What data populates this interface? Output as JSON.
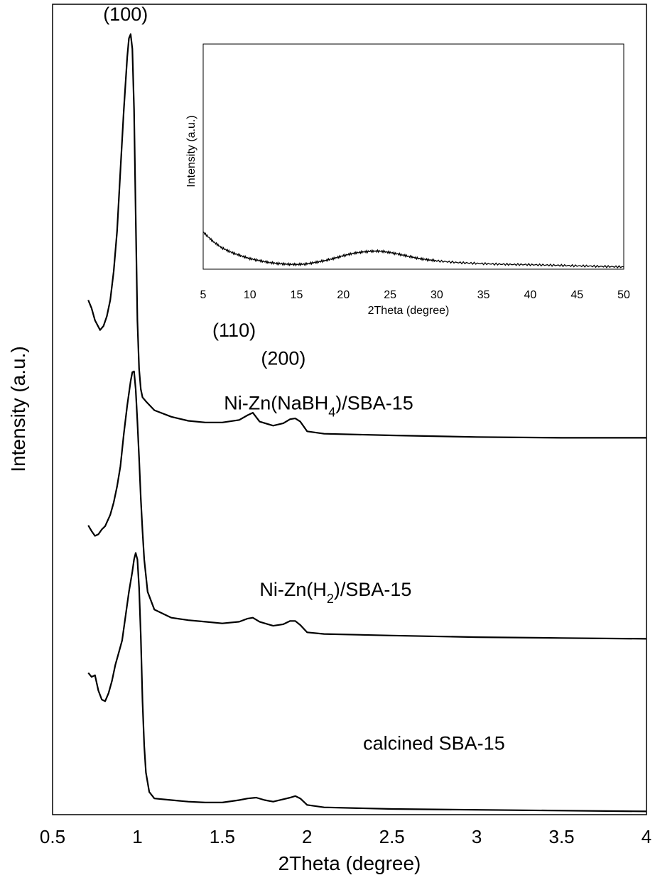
{
  "chart_data": {
    "type": "line",
    "title": "",
    "xlabel": "2Theta (degree)",
    "ylabel": "Intensity (a.u.)",
    "xlim": [
      0.5,
      4
    ],
    "ylim": [
      0,
      100
    ],
    "x_ticks": [
      "0.5",
      "1",
      "1.5",
      "2",
      "2.5",
      "3",
      "3.5",
      "4"
    ],
    "grid": false,
    "legend": "none",
    "peak_labels": [
      {
        "text": "(100)",
        "x": 0.93,
        "y": 98
      },
      {
        "text": "(110)",
        "x": 1.57,
        "y": 59
      },
      {
        "text": "(200)",
        "x": 1.86,
        "y": 55.5
      }
    ],
    "series": [
      {
        "name": "Ni-Zn(NaBH4)/SBA-15",
        "label_main": "Ni-Zn(NaBH",
        "label_sub": "4",
        "label_tail": ")/SBA-15",
        "label_x": 1.51,
        "label_y": 50,
        "color": "#000000",
        "x": [
          0.71,
          0.73,
          0.75,
          0.78,
          0.8,
          0.82,
          0.84,
          0.86,
          0.88,
          0.9,
          0.92,
          0.94,
          0.95,
          0.96,
          0.97,
          0.98,
          0.99,
          1.0,
          1.01,
          1.02,
          1.03,
          1.05,
          1.1,
          1.2,
          1.3,
          1.4,
          1.5,
          1.6,
          1.65,
          1.68,
          1.72,
          1.8,
          1.86,
          1.9,
          1.93,
          1.96,
          2.0,
          2.1,
          2.5,
          3.0,
          3.5,
          4.0
        ],
        "values": [
          63.5,
          62.5,
          61.0,
          59.8,
          60.3,
          61.5,
          63.5,
          67.0,
          72.0,
          79.5,
          87.0,
          93.5,
          95.8,
          96.3,
          94.5,
          87.0,
          74.0,
          61.0,
          55.0,
          52.5,
          51.5,
          51.0,
          49.9,
          49.1,
          48.6,
          48.4,
          48.4,
          48.7,
          49.3,
          49.6,
          48.5,
          48.0,
          48.3,
          48.8,
          48.9,
          48.5,
          47.3,
          47.0,
          46.8,
          46.6,
          46.5,
          46.5
        ]
      },
      {
        "name": "Ni-Zn(H2)/SBA-15",
        "label_main": "Ni-Zn(H",
        "label_sub": "2",
        "label_tail": ")/SBA-15",
        "label_x": 1.72,
        "label_y": 27,
        "color": "#000000",
        "x": [
          0.71,
          0.73,
          0.75,
          0.77,
          0.79,
          0.81,
          0.84,
          0.86,
          0.88,
          0.9,
          0.92,
          0.94,
          0.96,
          0.97,
          0.98,
          0.99,
          1.0,
          1.01,
          1.02,
          1.03,
          1.04,
          1.06,
          1.1,
          1.2,
          1.3,
          1.4,
          1.5,
          1.6,
          1.65,
          1.68,
          1.72,
          1.8,
          1.86,
          1.9,
          1.93,
          1.96,
          2.0,
          2.1,
          2.5,
          3.0,
          3.5,
          4.0
        ],
        "values": [
          35.7,
          35.0,
          34.4,
          34.6,
          35.2,
          35.6,
          37.0,
          38.5,
          40.5,
          43.0,
          47.0,
          50.5,
          53.5,
          54.6,
          54.7,
          52.5,
          48.5,
          44.0,
          39.0,
          35.0,
          31.5,
          27.5,
          25.3,
          24.3,
          24.0,
          23.8,
          23.6,
          23.8,
          24.2,
          24.3,
          23.8,
          23.3,
          23.5,
          23.9,
          23.9,
          23.4,
          22.5,
          22.3,
          22.1,
          21.9,
          21.8,
          21.7
        ]
      },
      {
        "name": "calcined SBA-15",
        "label_main": "calcined SBA-15",
        "label_sub": "",
        "label_tail": "",
        "label_x": 2.33,
        "label_y": 8,
        "color": "#000000",
        "x": [
          0.71,
          0.73,
          0.75,
          0.77,
          0.79,
          0.81,
          0.83,
          0.85,
          0.87,
          0.89,
          0.91,
          0.93,
          0.95,
          0.97,
          0.98,
          0.99,
          1.0,
          1.01,
          1.02,
          1.03,
          1.04,
          1.05,
          1.07,
          1.1,
          1.2,
          1.3,
          1.4,
          1.5,
          1.6,
          1.65,
          1.7,
          1.75,
          1.8,
          1.86,
          1.9,
          1.93,
          1.96,
          2.0,
          2.1,
          2.5,
          3.0,
          3.5,
          4.0
        ],
        "values": [
          17.5,
          17.0,
          17.2,
          15.3,
          14.2,
          14.0,
          15.0,
          16.5,
          18.5,
          20.0,
          21.5,
          24.5,
          27.5,
          30.0,
          31.5,
          32.3,
          31.5,
          28.0,
          22.0,
          14.0,
          8.5,
          5.2,
          2.8,
          2.0,
          1.8,
          1.6,
          1.5,
          1.5,
          1.8,
          2.0,
          2.1,
          1.8,
          1.6,
          1.9,
          2.1,
          2.3,
          2.0,
          1.2,
          0.9,
          0.7,
          0.6,
          0.5,
          0.4
        ]
      }
    ],
    "inset": {
      "type": "line",
      "xlabel": "2Theta (degree)",
      "ylabel": "Intensity (a.u.)",
      "xlim": [
        5,
        50
      ],
      "ylim": [
        0,
        100
      ],
      "x_ticks": [
        "5",
        "10",
        "15",
        "20",
        "25",
        "30",
        "35",
        "40",
        "45",
        "50"
      ],
      "series": [
        {
          "name": "",
          "x": [
            5,
            6,
            7,
            8,
            9,
            10,
            11,
            12,
            13,
            14,
            15,
            16,
            17,
            18,
            19,
            20,
            21,
            22,
            23,
            24,
            25,
            26,
            27,
            28,
            29,
            30,
            32,
            34,
            36,
            38,
            40,
            42,
            44,
            46,
            48,
            50
          ],
          "values": [
            16.5,
            12.5,
            9.5,
            7.5,
            6.0,
            4.7,
            3.8,
            3.0,
            2.5,
            2.2,
            2.1,
            2.3,
            3.0,
            3.8,
            4.8,
            6.0,
            7.0,
            7.6,
            8.0,
            8.0,
            7.4,
            6.6,
            5.7,
            4.8,
            4.2,
            3.7,
            3.0,
            2.6,
            2.3,
            2.1,
            2.0,
            1.8,
            1.6,
            1.4,
            1.2,
            1.0
          ]
        }
      ]
    }
  }
}
